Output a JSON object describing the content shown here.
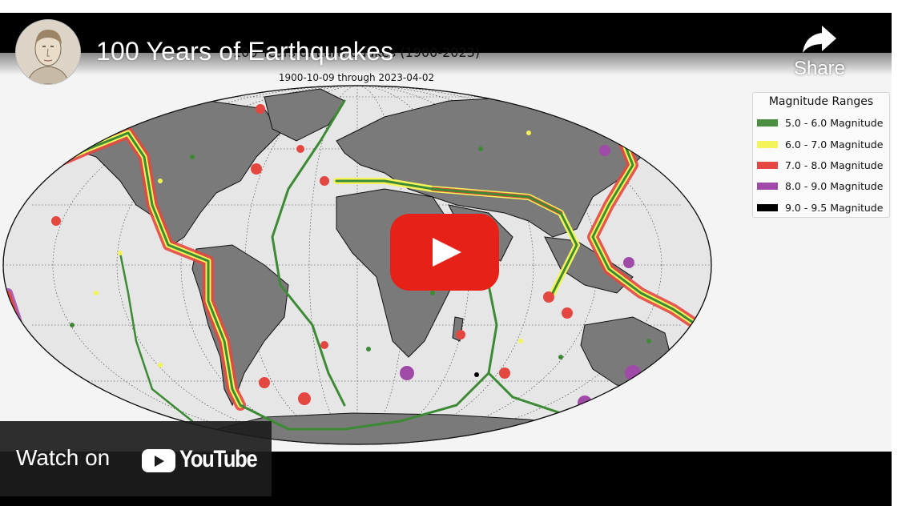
{
  "video": {
    "title": "100 Years of Earthquakes",
    "share_label": "Share",
    "watch_on_label": "Watch on",
    "youtube_brand": "YouTube"
  },
  "map": {
    "title": "100 Years of Earthquakes (1900-2023)",
    "subtitle": "1900-10-09 through 2023-04-02",
    "legend": {
      "title": "Magnitude Ranges",
      "items": [
        {
          "label": "5.0 - 6.0 Magnitude",
          "color": "#4a8f3f"
        },
        {
          "label": "6.0 - 7.0 Magnitude",
          "color": "#f4f45a"
        },
        {
          "label": "7.0 - 8.0 Magnitude",
          "color": "#e4473f"
        },
        {
          "label": "8.0 - 9.0 Magnitude",
          "color": "#a04aa8"
        },
        {
          "label": "9.0 - 9.5 Magnitude",
          "color": "#000000"
        }
      ]
    }
  },
  "colors": {
    "play_button": "#e62117",
    "land": "#7a7a7a",
    "ocean": "#e6e6e6"
  }
}
